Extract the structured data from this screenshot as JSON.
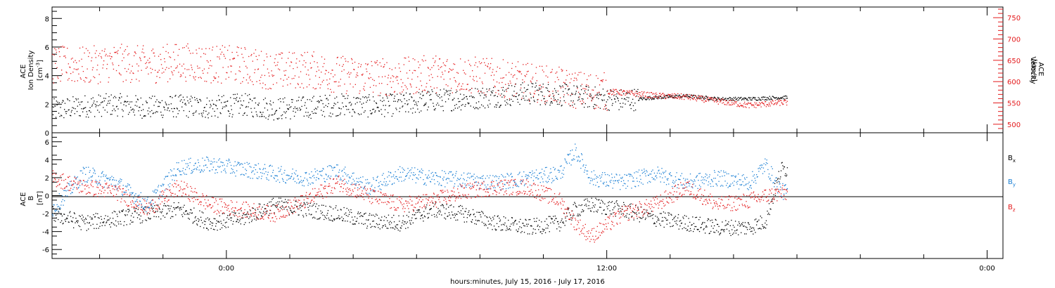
{
  "xaxis": {
    "tick_labels": [
      "0:00",
      "12:00",
      "0:00"
    ],
    "label": "hours:minutes, July 15, 2016 - July 17, 2016",
    "range_hours": [
      -5.5,
      24.5
    ]
  },
  "panels": {
    "top": {
      "left_label_lines": [
        "ACE",
        "Ion Density"
      ],
      "left_units": "[cm",
      "left_units_sup": "-3",
      "left_units_end": "]",
      "right_label_lines": [
        "ACE",
        "Velocity"
      ],
      "right_units": "[km/s]",
      "left_ticks": [
        "0",
        "2",
        "4",
        "6",
        "8"
      ],
      "right_ticks": [
        "500",
        "550",
        "600",
        "650",
        "700",
        "750"
      ]
    },
    "bottom": {
      "left_label_lines": [
        "ACE",
        "B"
      ],
      "left_units": "[nT]",
      "left_ticks": [
        "-6",
        "-4",
        "-2",
        "0",
        "2",
        "4",
        "6"
      ],
      "legend": [
        {
          "text": "B",
          "sub": "x",
          "color": "#000000"
        },
        {
          "text": "B",
          "sub": "y",
          "color": "#1a7fd4"
        },
        {
          "text": "B",
          "sub": "z",
          "color": "#e41a1c"
        }
      ]
    }
  },
  "colors": {
    "density": "#000000",
    "velocity": "#e41a1c",
    "bx": "#000000",
    "by": "#1a7fd4",
    "bz": "#e41a1c",
    "axis": "#000000"
  },
  "chart_data": [
    {
      "type": "scatter",
      "title": "",
      "x_unit": "hours relative to 0:00 July 16, 2016",
      "series": [
        {
          "name": "Ion Density",
          "axis": "left",
          "ylim": [
            0,
            8.8
          ],
          "x": [
            -5.5,
            -4.5,
            -3.5,
            -2.5,
            -1.5,
            -0.5,
            0.5,
            1.5,
            2.5,
            3.5,
            4.5,
            5.5,
            6.5,
            7.5,
            8.5,
            9.5,
            10.5,
            11.0,
            11.5,
            12.5,
            13.5,
            14.5,
            15.5,
            16.5,
            17.5
          ],
          "values": [
            1.6,
            1.9,
            2.0,
            1.8,
            1.9,
            1.8,
            2.0,
            1.7,
            1.8,
            2.0,
            1.9,
            2.0,
            2.3,
            2.4,
            2.6,
            2.8,
            2.7,
            2.6,
            2.5,
            2.3,
            2.5,
            2.6,
            2.4,
            2.4,
            2.5
          ]
        },
        {
          "name": "Velocity",
          "axis": "right",
          "ylim": [
            480,
            775
          ],
          "x": [
            -5.5,
            -4.5,
            -3.5,
            -2.5,
            -1.5,
            -0.5,
            0.5,
            1.5,
            2.5,
            3.5,
            4.5,
            5.5,
            6.5,
            7.5,
            8.5,
            9.5,
            10.5,
            11.0,
            11.5,
            12.5,
            13.5,
            14.5,
            15.5,
            16.5,
            17.5
          ],
          "values": [
            640,
            638,
            645,
            640,
            648,
            642,
            640,
            625,
            630,
            618,
            612,
            612,
            620,
            618,
            610,
            600,
            590,
            582,
            580,
            575,
            568,
            565,
            555,
            545,
            552
          ]
        }
      ]
    },
    {
      "type": "scatter",
      "title": "",
      "x_unit": "hours relative to 0:00 July 16, 2016",
      "ylim": [
        -7,
        7
      ],
      "series": [
        {
          "name": "Bx",
          "x": [
            -5.5,
            -4.5,
            -3.5,
            -2.5,
            -1.5,
            -0.5,
            0.5,
            1.5,
            2.5,
            3.5,
            4.5,
            5.5,
            6.5,
            7.5,
            8.5,
            9.5,
            10.5,
            11.0,
            11.5,
            12.5,
            13.5,
            14.5,
            15.5,
            16.5,
            17.0,
            17.5
          ],
          "values": [
            -2.0,
            -3.0,
            -2.5,
            -2.0,
            -1.5,
            -3.0,
            -2.5,
            -1.0,
            -1.5,
            -2.0,
            -2.8,
            -3.0,
            -1.5,
            -2.0,
            -3.0,
            -3.5,
            -3.0,
            -1.5,
            -1.0,
            -1.5,
            -2.5,
            -3.0,
            -3.5,
            -3.5,
            -2.8,
            3.0
          ]
        },
        {
          "name": "By",
          "x": [
            -5.5,
            -4.5,
            -3.5,
            -2.5,
            -1.5,
            -0.5,
            0.5,
            1.5,
            2.5,
            3.5,
            4.5,
            5.5,
            6.5,
            7.5,
            8.5,
            9.5,
            10.5,
            11.0,
            11.5,
            12.5,
            13.5,
            14.5,
            15.5,
            16.5,
            17.0,
            17.5
          ],
          "values": [
            -1.5,
            2.5,
            1.5,
            -1.0,
            3.2,
            3.5,
            3.0,
            2.5,
            2.0,
            2.8,
            1.0,
            2.5,
            2.0,
            1.8,
            1.5,
            2.0,
            2.5,
            5.0,
            2.0,
            1.5,
            2.5,
            1.5,
            2.0,
            1.5,
            3.5,
            0.5
          ]
        },
        {
          "name": "Bz",
          "x": [
            -5.5,
            -4.5,
            -3.5,
            -2.5,
            -1.5,
            -0.5,
            0.5,
            1.5,
            2.5,
            3.5,
            4.5,
            5.5,
            6.5,
            7.5,
            8.5,
            9.5,
            10.5,
            11.0,
            11.5,
            12.5,
            13.5,
            14.5,
            15.5,
            16.5,
            17.0,
            17.5
          ],
          "values": [
            2.0,
            1.0,
            0.5,
            -1.5,
            1.0,
            -1.0,
            -1.5,
            -2.0,
            -0.5,
            1.5,
            0.0,
            -1.0,
            -0.5,
            0.5,
            1.0,
            1.0,
            -0.5,
            -3.0,
            -4.5,
            -2.0,
            -1.0,
            1.0,
            -1.0,
            -0.5,
            0.0,
            0.3
          ]
        }
      ]
    }
  ]
}
